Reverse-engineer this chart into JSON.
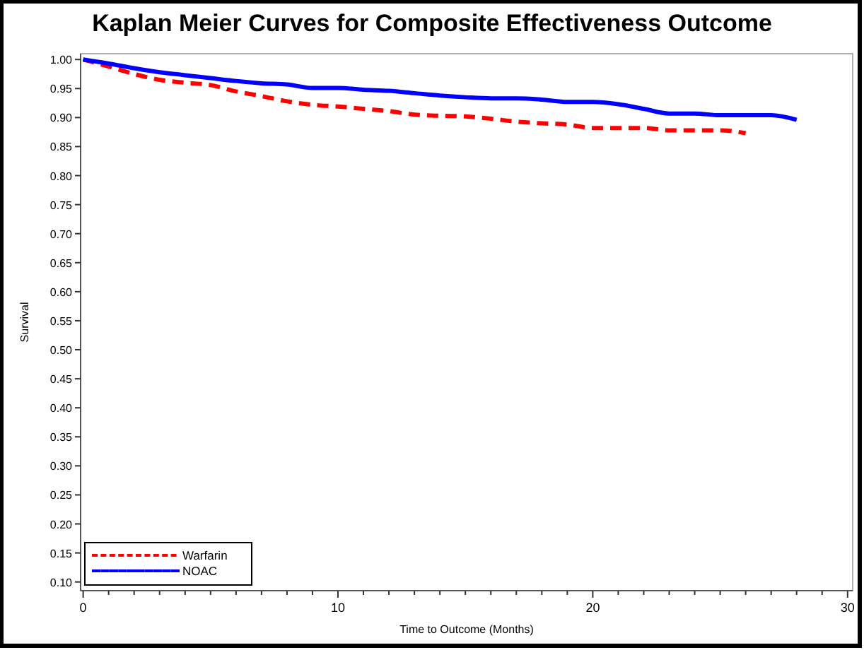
{
  "chart_data": {
    "type": "line",
    "title": "Kaplan Meier Curves for Composite Effectiveness Outcome",
    "xlabel": "Time to Outcome (Months)",
    "ylabel": "Survival",
    "xlim": [
      -0.1,
      30.2
    ],
    "ylim": [
      0.085,
      1.01
    ],
    "xticks": [
      0,
      {
        "value": 1,
        "label": null
      },
      {
        "value": 2,
        "label": null
      },
      {
        "value": 3,
        "label": null
      },
      {
        "value": 4,
        "label": null
      },
      {
        "value": 5,
        "label": null
      },
      {
        "value": 6,
        "label": null
      },
      {
        "value": 7,
        "label": null
      },
      {
        "value": 8,
        "label": null
      },
      {
        "value": 9,
        "label": null
      },
      10,
      {
        "value": 11,
        "label": null
      },
      {
        "value": 12,
        "label": null
      },
      {
        "value": 13,
        "label": null
      },
      {
        "value": 14,
        "label": null
      },
      {
        "value": 15,
        "label": null
      },
      {
        "value": 16,
        "label": null
      },
      {
        "value": 17,
        "label": null
      },
      {
        "value": 18,
        "label": null
      },
      {
        "value": 19,
        "label": null
      },
      20,
      {
        "value": 21,
        "label": null
      },
      {
        "value": 22,
        "label": null
      },
      {
        "value": 23,
        "label": null
      },
      {
        "value": 24,
        "label": null
      },
      {
        "value": 25,
        "label": null
      },
      {
        "value": 26,
        "label": null
      },
      {
        "value": 27,
        "label": null
      },
      {
        "value": 28,
        "label": null
      },
      {
        "value": 29,
        "label": null
      },
      30
    ],
    "yticks": [
      {
        "value": 0.1,
        "label": "0.10"
      },
      {
        "value": 0.15,
        "label": "0.15"
      },
      {
        "value": 0.2,
        "label": "0.20"
      },
      {
        "value": 0.25,
        "label": "0.25"
      },
      {
        "value": 0.3,
        "label": "0.30"
      },
      {
        "value": 0.35,
        "label": "0.35"
      },
      {
        "value": 0.4,
        "label": "0.40"
      },
      {
        "value": 0.45,
        "label": "0.45"
      },
      {
        "value": 0.5,
        "label": "0.50"
      },
      {
        "value": 0.55,
        "label": "0.55"
      },
      {
        "value": 0.6,
        "label": "0.60"
      },
      {
        "value": 0.65,
        "label": "0.65"
      },
      {
        "value": 0.7,
        "label": "0.70"
      },
      {
        "value": 0.75,
        "label": "0.75"
      },
      {
        "value": 0.8,
        "label": "0.80"
      },
      {
        "value": 0.85,
        "label": "0.85"
      },
      {
        "value": 0.9,
        "label": "0.90"
      },
      {
        "value": 0.95,
        "label": "0.95"
      },
      {
        "value": 1,
        "label": "1.00"
      }
    ],
    "legend": "bottom left",
    "grid": false,
    "series": [
      {
        "name": "Warfarin",
        "color": "#ff0000",
        "line_style": "dashed",
        "x": [
          0,
          1,
          2,
          3,
          4,
          5,
          6,
          7,
          8,
          9,
          10,
          11,
          12,
          13,
          14,
          15,
          16,
          17,
          18,
          19,
          20,
          21,
          22,
          23,
          24,
          25,
          26
        ],
        "values": [
          1.0,
          0.988,
          0.975,
          0.965,
          0.96,
          0.956,
          0.945,
          0.937,
          0.928,
          0.922,
          0.919,
          0.915,
          0.911,
          0.905,
          0.903,
          0.902,
          0.898,
          0.893,
          0.89,
          0.888,
          0.882,
          0.882,
          0.882,
          0.878,
          0.878,
          0.878,
          0.873
        ]
      },
      {
        "name": "NOAC",
        "color": "#0000ff",
        "line_style": "solid",
        "x": [
          0,
          1,
          2,
          3,
          4,
          5,
          6,
          7,
          8,
          9,
          10,
          11,
          12,
          13,
          14,
          15,
          16,
          17,
          18,
          19,
          20,
          21,
          22,
          23,
          24,
          25,
          26,
          27,
          28
        ],
        "values": [
          1.0,
          0.993,
          0.985,
          0.978,
          0.973,
          0.968,
          0.963,
          0.959,
          0.957,
          0.951,
          0.951,
          0.948,
          0.946,
          0.942,
          0.938,
          0.935,
          0.933,
          0.933,
          0.931,
          0.927,
          0.927,
          0.923,
          0.915,
          0.907,
          0.907,
          0.904,
          0.904,
          0.904,
          0.896
        ]
      }
    ]
  }
}
